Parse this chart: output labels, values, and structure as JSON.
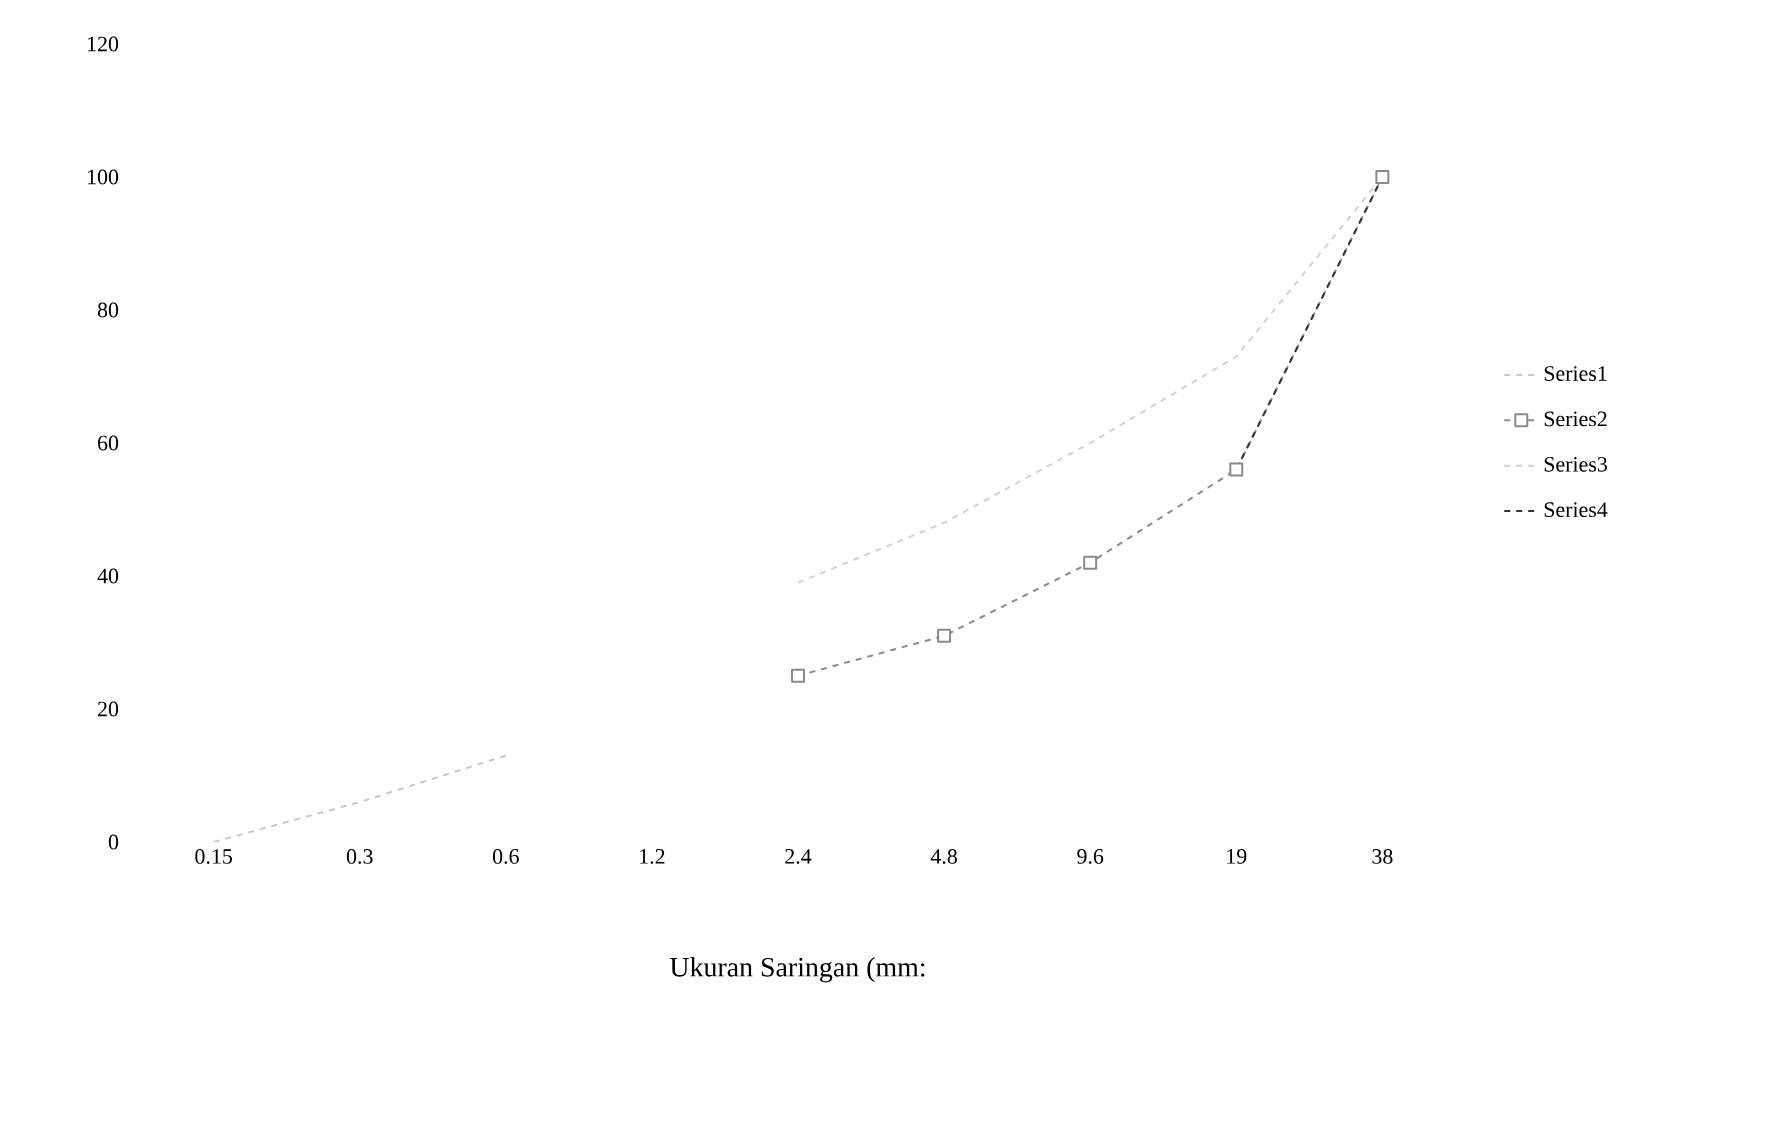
{
  "chart_data": {
    "type": "line",
    "xlabel": "Ukuran Saringan (mm:",
    "categories": [
      "0.15",
      "0.3",
      "0.6",
      "1.2",
      "2.4",
      "4.8",
      "9.6",
      "19",
      "38"
    ],
    "series": [
      {
        "name": "Series1",
        "color": "#c8c8c8",
        "marker": "none",
        "line_style": "dashed",
        "values": [
          0,
          6,
          13,
          null,
          null,
          null,
          null,
          null,
          null
        ]
      },
      {
        "name": "Series2",
        "color": "#8a8a8a",
        "marker": "square",
        "line_style": "dashed",
        "values": [
          null,
          null,
          null,
          null,
          25,
          31,
          42,
          56,
          100
        ]
      },
      {
        "name": "Series3",
        "color": "#d2d2d2",
        "marker": "none",
        "line_style": "dashed",
        "values": [
          null,
          null,
          null,
          null,
          39,
          48,
          60,
          73,
          100
        ]
      },
      {
        "name": "Series4",
        "color": "#333333",
        "marker": "none",
        "line_style": "dashed",
        "values": [
          null,
          null,
          null,
          null,
          null,
          null,
          null,
          56,
          100
        ]
      }
    ],
    "ylim": [
      0,
      120
    ],
    "yticks": [
      0,
      20,
      40,
      60,
      80,
      100,
      120
    ],
    "grid": false,
    "legend": "right"
  }
}
